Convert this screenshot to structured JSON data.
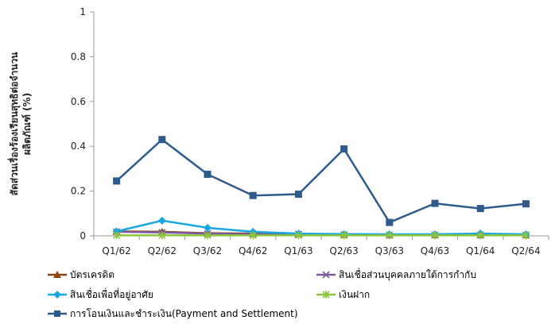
{
  "chart_data": {
    "type": "line",
    "ylabel": "สัดส่วนเรื่องร้องเรียนสุทธิต่อจำนวนผลิตภัณฑ์ (%)",
    "ylabel_lines": [
      "สัดส่วนเรื่องร้องเรียนสุทธิต่อจำนวน",
      "ผลิตภัณฑ์ (%)"
    ],
    "xlabel": "",
    "ylim": [
      0,
      1
    ],
    "yticks": [
      0,
      0.2,
      0.4,
      0.6,
      0.8,
      1
    ],
    "ytick_labels": [
      "0",
      "0.2",
      "0.4",
      "0.6",
      "0.8",
      "1"
    ],
    "categories": [
      "Q1/62",
      "Q2/62",
      "Q3/62",
      "Q4/62",
      "Q1/63",
      "Q2/63",
      "Q3/63",
      "Q4/63",
      "Q1/64",
      "Q2/64"
    ],
    "grid": false,
    "legend_position": "bottom",
    "series": [
      {
        "name": "บัตรเครดิต",
        "color": "#8B4513",
        "marker": "triangle",
        "values": [
          0.02,
          0.018,
          0.012,
          0.01,
          0.008,
          0.005,
          0.003,
          0.003,
          0.003,
          0.003
        ]
      },
      {
        "name": "สินเชื่อส่วนบุคคลภายใต้การกำกับ",
        "color": "#7B5A9E",
        "marker": "x",
        "values": [
          0.018,
          0.015,
          0.01,
          0.008,
          0.007,
          0.005,
          0.004,
          0.004,
          0.004,
          0.004
        ]
      },
      {
        "name": "สินเชื่อเพื่อที่อยู่อาศัย",
        "color": "#1AA7E0",
        "marker": "diamond",
        "values": [
          0.02,
          0.068,
          0.036,
          0.018,
          0.01,
          0.008,
          0.007,
          0.007,
          0.01,
          0.007
        ]
      },
      {
        "name": "เงินฝาก",
        "color": "#8CC63F",
        "marker": "star",
        "values": [
          0.002,
          0.002,
          0.002,
          0.002,
          0.002,
          0.002,
          0.002,
          0.002,
          0.002,
          0.002
        ]
      },
      {
        "name": "การโอนเงินและชำระเงิน(Payment and Settlement)",
        "color": "#2E5A8C",
        "marker": "square",
        "values": [
          0.245,
          0.43,
          0.275,
          0.18,
          0.186,
          0.388,
          0.06,
          0.145,
          0.122,
          0.143
        ]
      }
    ]
  }
}
